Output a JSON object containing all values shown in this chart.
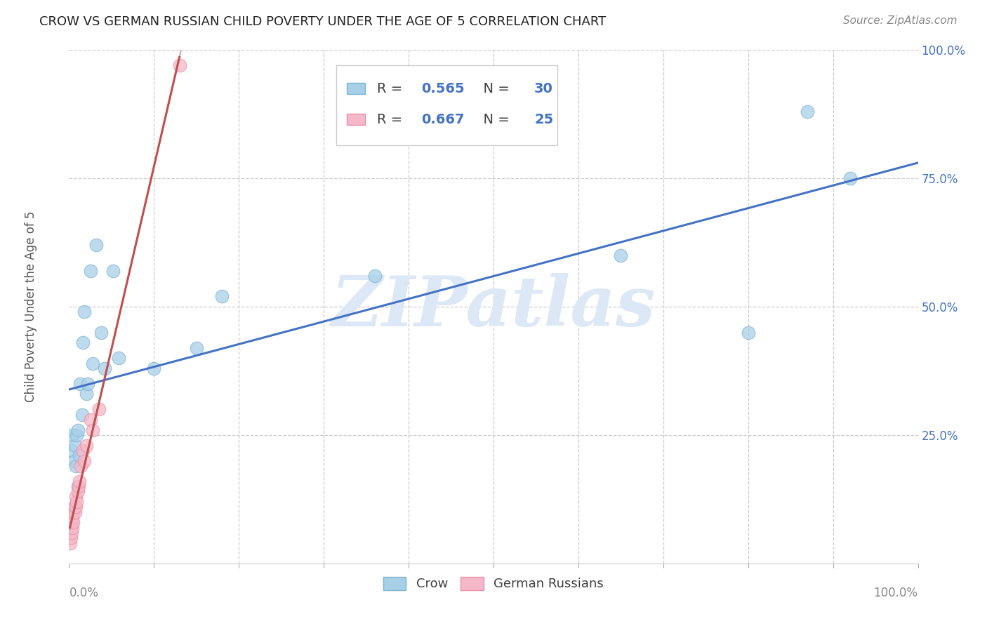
{
  "title": "CROW VS GERMAN RUSSIAN CHILD POVERTY UNDER THE AGE OF 5 CORRELATION CHART",
  "source": "Source: ZipAtlas.com",
  "ylabel": "Child Poverty Under the Age of 5",
  "xlim": [
    0,
    1.0
  ],
  "ylim": [
    0,
    1.0
  ],
  "xticklabels_left": "0.0%",
  "xticklabels_right": "100.0%",
  "ytick_labels_right": [
    "100.0%",
    "75.0%",
    "50.0%",
    "25.0%"
  ],
  "ytick_positions_right": [
    1.0,
    0.75,
    0.5,
    0.25
  ],
  "watermark": "ZIPatlas",
  "crow_x": [
    0.003,
    0.004,
    0.006,
    0.007,
    0.008,
    0.009,
    0.01,
    0.01,
    0.012,
    0.013,
    0.015,
    0.016,
    0.018,
    0.02,
    0.022,
    0.025,
    0.028,
    0.032,
    0.038,
    0.042,
    0.052,
    0.058,
    0.1,
    0.15,
    0.18,
    0.36,
    0.65,
    0.8,
    0.87,
    0.92
  ],
  "crow_y": [
    0.22,
    0.25,
    0.2,
    0.23,
    0.19,
    0.25,
    0.26,
    0.15,
    0.21,
    0.35,
    0.29,
    0.43,
    0.49,
    0.33,
    0.35,
    0.57,
    0.39,
    0.62,
    0.45,
    0.38,
    0.57,
    0.4,
    0.38,
    0.42,
    0.52,
    0.56,
    0.6,
    0.45,
    0.88,
    0.75
  ],
  "german_x": [
    0.001,
    0.002,
    0.002,
    0.003,
    0.003,
    0.004,
    0.004,
    0.005,
    0.005,
    0.006,
    0.007,
    0.008,
    0.008,
    0.009,
    0.01,
    0.011,
    0.012,
    0.014,
    0.016,
    0.018,
    0.02,
    0.025,
    0.028,
    0.035,
    0.13
  ],
  "german_y": [
    0.04,
    0.05,
    0.07,
    0.06,
    0.08,
    0.07,
    0.09,
    0.08,
    0.1,
    0.11,
    0.1,
    0.11,
    0.13,
    0.12,
    0.14,
    0.15,
    0.16,
    0.19,
    0.22,
    0.2,
    0.23,
    0.28,
    0.26,
    0.3,
    0.97
  ],
  "crow_R": 0.565,
  "crow_N": 30,
  "german_R": 0.667,
  "german_N": 25,
  "crow_color": "#a8cfe8",
  "german_color": "#f5b8c8",
  "crow_edge_color": "#7fb3d3",
  "german_edge_color": "#e890a8",
  "crow_line_color": "#4472c4",
  "german_line_color": "#c0504d",
  "german_dash_color": "#d4a0a8",
  "legend_text_color": "#404040",
  "legend_value_color": "#4472c4",
  "legend_border_color": "#cccccc",
  "background_color": "#ffffff",
  "grid_color": "#cccccc",
  "title_color": "#222222",
  "source_color": "#888888",
  "watermark_color": "#dce8f5",
  "axis_label_color": "#555555",
  "tick_color": "#888888",
  "right_tick_color": "#4472c4"
}
